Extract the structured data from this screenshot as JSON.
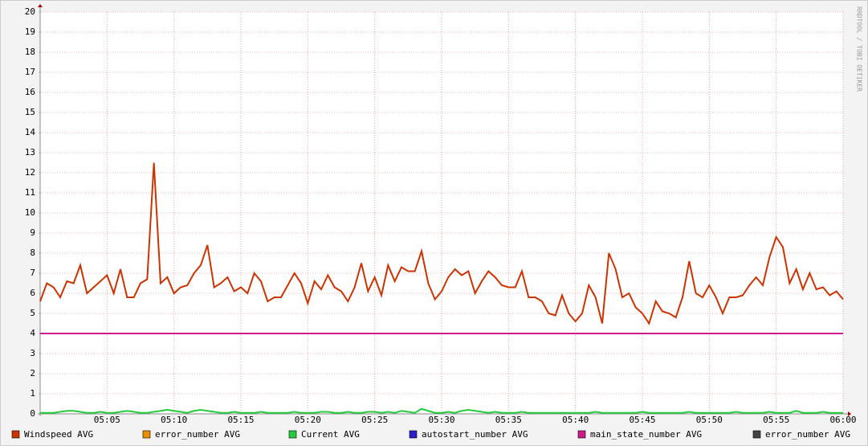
{
  "chart_data": {
    "type": "line",
    "watermark": "RRDTOOL / TOBI OETIKER",
    "categories": [
      null,
      null,
      null,
      null,
      null,
      null,
      null,
      null,
      null,
      null,
      "05:05",
      null,
      null,
      null,
      null,
      null,
      null,
      null,
      null,
      null,
      "05:10",
      null,
      null,
      null,
      null,
      null,
      null,
      null,
      null,
      null,
      "05:15",
      null,
      null,
      null,
      null,
      null,
      null,
      null,
      null,
      null,
      "05:20",
      null,
      null,
      null,
      null,
      null,
      null,
      null,
      null,
      null,
      "05:25",
      null,
      null,
      null,
      null,
      null,
      null,
      null,
      null,
      null,
      "05:30",
      null,
      null,
      null,
      null,
      null,
      null,
      null,
      null,
      null,
      "05:35",
      null,
      null,
      null,
      null,
      null,
      null,
      null,
      null,
      null,
      "05:40",
      null,
      null,
      null,
      null,
      null,
      null,
      null,
      null,
      null,
      "05:45",
      null,
      null,
      null,
      null,
      null,
      null,
      null,
      null,
      null,
      "05:50",
      null,
      null,
      null,
      null,
      null,
      null,
      null,
      null,
      null,
      "05:55",
      null,
      null,
      null,
      null,
      null,
      null,
      null,
      null,
      null,
      "06:00"
    ],
    "ylim": [
      0,
      20
    ],
    "yticks": [
      0,
      1,
      2,
      3,
      4,
      5,
      6,
      7,
      8,
      9,
      10,
      11,
      12,
      13,
      14,
      15,
      16,
      17,
      18,
      19,
      20
    ],
    "grid": true,
    "series": [
      {
        "name": "Windspeed AVG",
        "color": "#cc3300",
        "values": [
          5.6,
          6.5,
          6.3,
          5.8,
          6.6,
          6.5,
          7.4,
          6.0,
          6.3,
          6.6,
          6.9,
          6.0,
          7.2,
          5.8,
          5.8,
          6.5,
          6.7,
          12.5,
          6.5,
          6.8,
          6.0,
          6.3,
          6.4,
          7.0,
          7.4,
          8.4,
          6.3,
          6.5,
          6.8,
          6.1,
          6.3,
          6.0,
          7.0,
          6.6,
          5.6,
          5.8,
          5.8,
          6.4,
          7.0,
          6.5,
          5.5,
          6.6,
          6.2,
          6.9,
          6.3,
          6.1,
          5.6,
          6.3,
          7.5,
          6.1,
          6.8,
          5.9,
          7.4,
          6.6,
          7.3,
          7.1,
          7.1,
          8.1,
          6.5,
          5.7,
          6.1,
          6.8,
          7.2,
          6.9,
          7.1,
          6.0,
          6.6,
          7.1,
          6.8,
          6.4,
          6.3,
          6.3,
          7.1,
          5.8,
          5.8,
          5.6,
          5.0,
          4.9,
          5.9,
          5.0,
          4.6,
          5.0,
          6.4,
          5.8,
          4.5,
          8.0,
          7.2,
          5.8,
          6.0,
          5.3,
          5.0,
          4.5,
          5.6,
          5.1,
          5.0,
          4.8,
          5.8,
          7.6,
          6.0,
          5.8,
          6.4,
          5.8,
          5.0,
          5.8,
          5.8,
          5.9,
          6.4,
          6.8,
          6.4,
          7.8,
          8.8,
          8.3,
          6.5,
          7.2,
          6.2,
          7.0,
          6.2,
          6.3,
          5.9,
          6.1,
          5.7
        ]
      },
      {
        "name": "error_number AVG",
        "color": "#ea8f00"
      },
      {
        "name": "Current AVG",
        "color": "#24cc3c",
        "values": [
          0.05,
          0.05,
          0.05,
          0.1,
          0.15,
          0.15,
          0.1,
          0.05,
          0.05,
          0.1,
          0.05,
          0.05,
          0.1,
          0.15,
          0.1,
          0.05,
          0.05,
          0.1,
          0.15,
          0.2,
          0.15,
          0.1,
          0.05,
          0.15,
          0.2,
          0.15,
          0.1,
          0.05,
          0.05,
          0.1,
          0.05,
          0.05,
          0.05,
          0.1,
          0.05,
          0.05,
          0.05,
          0.05,
          0.1,
          0.05,
          0.05,
          0.05,
          0.1,
          0.1,
          0.05,
          0.05,
          0.1,
          0.05,
          0.05,
          0.1,
          0.1,
          0.05,
          0.1,
          0.05,
          0.15,
          0.1,
          0.05,
          0.25,
          0.15,
          0.05,
          0.05,
          0.1,
          0.05,
          0.15,
          0.2,
          0.15,
          0.1,
          0.05,
          0.1,
          0.05,
          0.05,
          0.05,
          0.1,
          0.05,
          0.05,
          0.05,
          0.05,
          0.05,
          0.05,
          0.05,
          0.05,
          0.05,
          0.05,
          0.1,
          0.05,
          0.05,
          0.05,
          0.05,
          0.05,
          0.05,
          0.1,
          0.05,
          0.05,
          0.05,
          0.05,
          0.05,
          0.05,
          0.1,
          0.05,
          0.05,
          0.05,
          0.05,
          0.05,
          0.05,
          0.1,
          0.05,
          0.05,
          0.05,
          0.05,
          0.1,
          0.05,
          0.05,
          0.05,
          0.15,
          0.05,
          0.05,
          0.05,
          0.1,
          0.05,
          0.05,
          0.05
        ]
      },
      {
        "name": "autostart_number AVG",
        "color": "#2a1fcc"
      },
      {
        "name": "main_state_number AVG",
        "color": "#cc1b8d",
        "values": [
          4,
          4,
          4,
          4,
          4,
          4,
          4,
          4,
          4,
          4,
          4,
          4,
          4,
          4,
          4,
          4,
          4,
          4,
          4,
          4,
          4,
          4,
          4,
          4,
          4,
          4,
          4,
          4,
          4,
          4,
          4,
          4,
          4,
          4,
          4,
          4,
          4,
          4,
          4,
          4,
          4,
          4,
          4,
          4,
          4,
          4,
          4,
          4,
          4,
          4,
          4,
          4,
          4,
          4,
          4,
          4,
          4,
          4,
          4,
          4,
          4,
          4,
          4,
          4,
          4,
          4,
          4,
          4,
          4,
          4,
          4,
          4,
          4,
          4,
          4,
          4,
          4,
          4,
          4,
          4,
          4,
          4,
          4,
          4,
          4,
          4,
          4,
          4,
          4,
          4,
          4,
          4,
          4,
          4,
          4,
          4,
          4,
          4,
          4,
          4,
          4,
          4,
          4,
          4,
          4,
          4,
          4,
          4,
          4,
          4,
          4,
          4,
          4,
          4,
          4,
          4,
          4,
          4,
          4,
          4,
          4
        ]
      },
      {
        "name": "error_number AVG",
        "color": "#444444"
      }
    ]
  }
}
